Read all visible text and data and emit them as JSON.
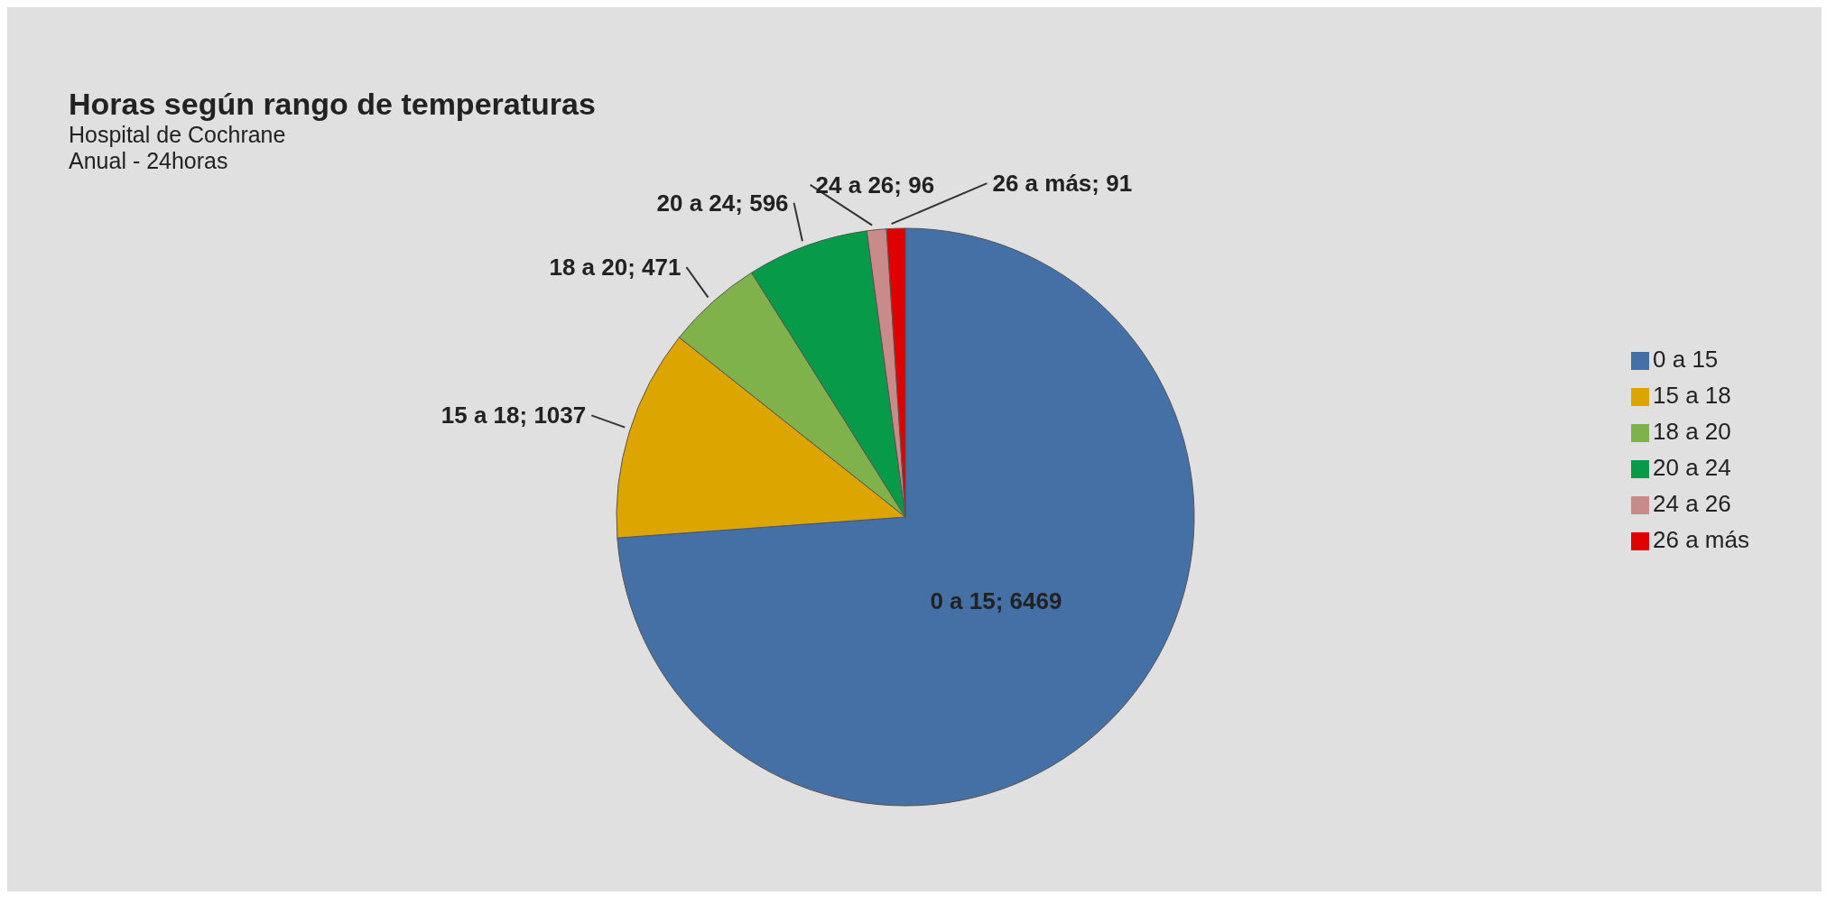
{
  "chart_data": {
    "type": "pie",
    "title": "Horas según rango de temperaturas",
    "subtitle": "Hospital de Cochrane",
    "annotations": [
      "Anual - 24horas"
    ],
    "categories": [
      "0 a 15",
      "15 a 18",
      "18 a 20",
      "20 a 24",
      "24 a 26",
      "26 a más"
    ],
    "values": [
      6469,
      1037,
      471,
      596,
      96,
      91
    ],
    "value_labels": [
      "0 a 15; 6469",
      "15 a 18; 1037",
      "18 a 20; 471",
      "20 a 24; 596",
      "24 a 26; 96",
      "26 a más; 91"
    ],
    "colors": [
      "#4470a6",
      "#dca500",
      "#7fb24a",
      "#079a48",
      "#c98a8a",
      "#e00000"
    ],
    "legend": "right"
  }
}
